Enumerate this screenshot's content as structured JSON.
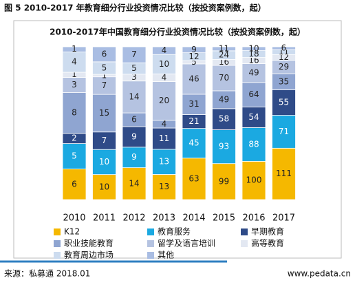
{
  "caption": "图 5 2010-2017 年教育细分行业投资情况比较（按投资案例数，起）",
  "source": "来源：私募通 2018.01",
  "website": "www.pedata.cn",
  "chart_data": {
    "type": "stacked_bar_100",
    "title": "2010-2017年中国教育细分行业投资情况比较（按投资案例数，起）",
    "categories": [
      "2010",
      "2011",
      "2012",
      "2013",
      "2014",
      "2015",
      "2016",
      "2017"
    ],
    "series": [
      {
        "name": "K12",
        "color": "#f5b800",
        "values": [
          6,
          10,
          14,
          13,
          63,
          99,
          100,
          111
        ]
      },
      {
        "name": "教育服务",
        "color": "#1ba9e1",
        "values": [
          5,
          10,
          9,
          13,
          45,
          93,
          88,
          71
        ]
      },
      {
        "name": "早期教育",
        "color": "#2f4b88",
        "values": [
          2,
          7,
          9,
          11,
          21,
          58,
          54,
          55
        ]
      },
      {
        "name": "职业技能教育",
        "color": "#8fa5d1",
        "values": [
          8,
          15,
          6,
          4,
          31,
          49,
          64,
          35
        ]
      },
      {
        "name": "留学及语言培训",
        "color": "#b5c3e1",
        "values": [
          3,
          7,
          14,
          20,
          46,
          70,
          49,
          29
        ]
      },
      {
        "name": "高等教育",
        "color": "#e3e8f2",
        "values": [
          1,
          1,
          3,
          4,
          5,
          16,
          16,
          12
        ]
      },
      {
        "name": "教育周边市场",
        "color": "#cddcef",
        "values": [
          4,
          5,
          5,
          10,
          12,
          24,
          18,
          11
        ]
      },
      {
        "name": "其他",
        "color": "#a9bde3",
        "values": [
          1,
          6,
          7,
          4,
          9,
          11,
          10,
          6
        ]
      }
    ],
    "legend": "bottom"
  }
}
